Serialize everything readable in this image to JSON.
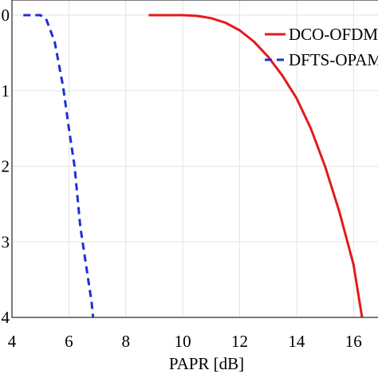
{
  "chart_data": {
    "type": "line",
    "xlabel": "PAPR [dB]",
    "ylabel": "",
    "xlim": [
      4,
      17
    ],
    "ylim": [
      -4,
      0
    ],
    "y_scale": "log",
    "grid": true,
    "legend_position": "top-right",
    "x_ticks": [
      "4",
      "6",
      "8",
      "10",
      "12",
      "14",
      "16"
    ],
    "y_ticks": [
      "0",
      "-1",
      "-2",
      "-3",
      "-4"
    ],
    "y_tick_labels_visible": [
      "0",
      "1",
      "2",
      "3",
      "4"
    ],
    "colors": {
      "series1": "#e31a1c",
      "series2": "#1f2fd4",
      "grid": "#e3e3e3"
    },
    "series": [
      {
        "name": "DCO-OFDM",
        "style": "solid",
        "x": [
          8.8,
          10.0,
          10.5,
          11.0,
          11.5,
          12.0,
          12.5,
          13.0,
          13.5,
          14.0,
          14.5,
          15.0,
          15.5,
          16.0,
          16.3
        ],
        "y": [
          0,
          0,
          -0.01,
          -0.04,
          -0.1,
          -0.2,
          -0.35,
          -0.55,
          -0.8,
          -1.1,
          -1.5,
          -2.0,
          -2.6,
          -3.3,
          -4.0
        ]
      },
      {
        "name": "DFTS-OPAM",
        "style": "dashed",
        "x": [
          4.4,
          5.0,
          5.2,
          5.5,
          5.8,
          6.0,
          6.2,
          6.3,
          6.4,
          6.6,
          6.8,
          6.85
        ],
        "y": [
          0,
          0,
          -0.05,
          -0.35,
          -0.95,
          -1.5,
          -2.0,
          -2.4,
          -2.8,
          -3.3,
          -3.8,
          -4.0
        ]
      }
    ]
  }
}
